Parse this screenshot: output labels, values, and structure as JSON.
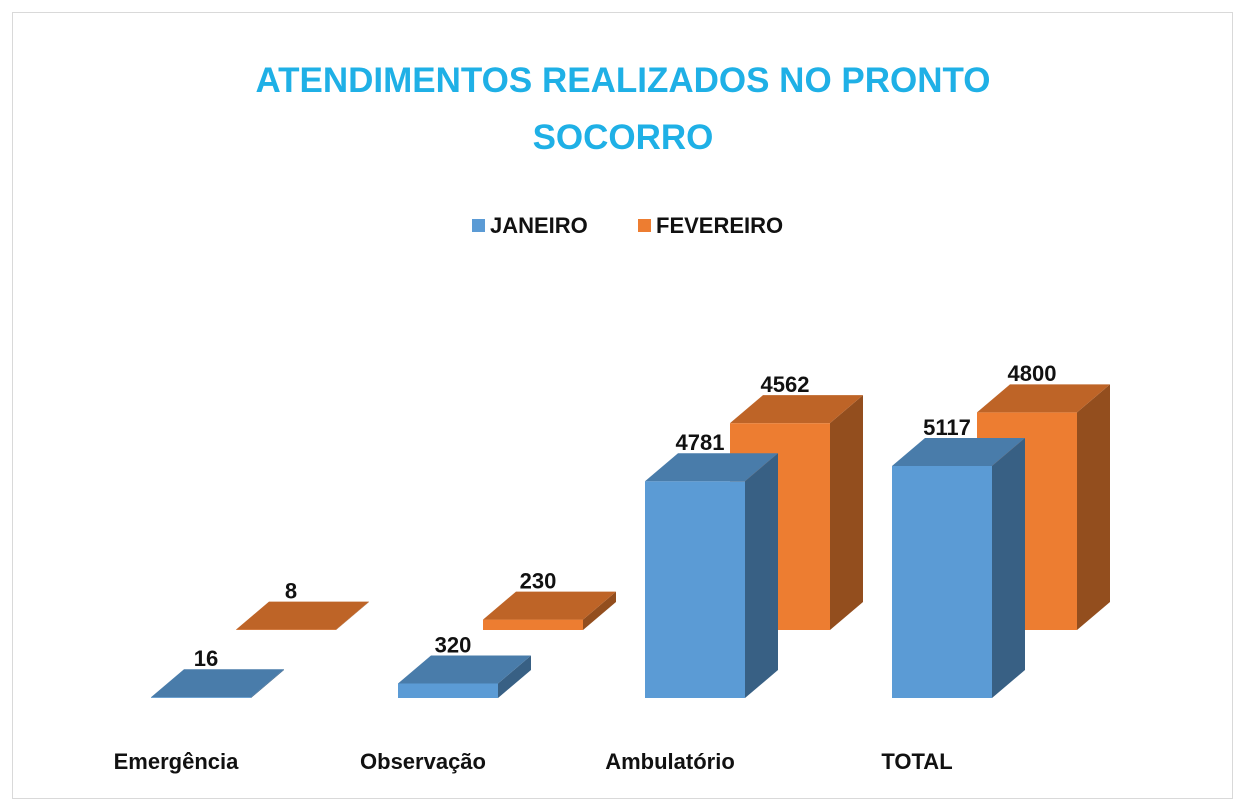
{
  "chart_data": {
    "type": "bar3d",
    "title": "ATENDIMENTOS REALIZADOS NO PRONTO SOCORRO",
    "categories": [
      "Emergência",
      "Observação",
      "Ambulatório",
      "TOTAL"
    ],
    "series": [
      {
        "name": "JANEIRO",
        "color": "#5b9bd5",
        "values": [
          16,
          320,
          4781,
          5117
        ]
      },
      {
        "name": "FEVEREIRO",
        "color": "#ed7d31",
        "values": [
          8,
          230,
          4562,
          4800
        ]
      }
    ],
    "legend": "top"
  }
}
